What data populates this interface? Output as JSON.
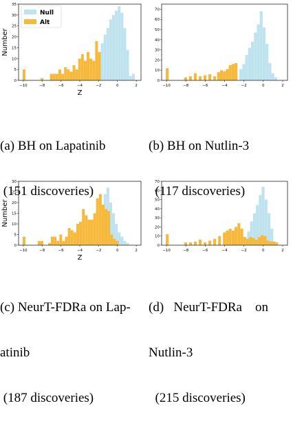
{
  "figure": {
    "captions": [
      {
        "lines": [
          "(a) BH on Lapatinib",
          " (151 discoveries)"
        ]
      },
      {
        "lines": [
          "(b) BH on Nutlin-3",
          "  (117 discoveries)"
        ]
      },
      {
        "lines": [
          "(c) NeurT-FDRa on Lap-",
          "atinib",
          " (187 discoveries)"
        ]
      },
      {
        "lines": [
          "(d)   NeurT-FDRa    on",
          "Nutlin-3",
          "  (215 discoveries)"
        ]
      }
    ]
  },
  "colors": {
    "null": "#bfe3ee",
    "alt": "#f6b93b"
  },
  "chart_data": [
    {
      "type": "bar",
      "title": "",
      "xlabel": "Z",
      "ylabel": "Number",
      "xlim": [
        -10.5,
        2.5
      ],
      "ylim": [
        0,
        35
      ],
      "xticks": [
        -10,
        -8,
        -6,
        -4,
        -2,
        0,
        2
      ],
      "yticks": [
        0,
        5,
        10,
        15,
        20,
        25,
        30,
        35
      ],
      "legend": {
        "position": "top-left",
        "entries": [
          "Null",
          "Alt"
        ]
      },
      "bin_width": 0.33,
      "series": [
        {
          "name": "Null",
          "x": [
            -2.2,
            -1.9,
            -1.6,
            -1.3,
            -1.0,
            -0.7,
            -0.4,
            -0.1,
            0.2,
            0.5,
            0.8,
            1.1,
            1.4,
            1.7
          ],
          "values": [
            4,
            11,
            17,
            21,
            24,
            28,
            30,
            32,
            34,
            31,
            24,
            14,
            2,
            3
          ]
        },
        {
          "name": "Alt",
          "x": [
            -9.9,
            -8.0,
            -7.0,
            -6.7,
            -6.4,
            -6.1,
            -5.8,
            -5.5,
            -5.2,
            -4.9,
            -4.6,
            -4.3,
            -4.0,
            -3.7,
            -3.4,
            -3.1,
            -2.8,
            -2.5,
            -2.2,
            -1.9
          ],
          "values": [
            5,
            1,
            3,
            3,
            3,
            5,
            3,
            6,
            5,
            4,
            7,
            5,
            10,
            12,
            9,
            13,
            10,
            9,
            18,
            13
          ]
        }
      ]
    },
    {
      "type": "bar",
      "title": "",
      "xlabel": "",
      "ylabel": "",
      "xlim": [
        -10.5,
        2.5
      ],
      "ylim": [
        0,
        75
      ],
      "xticks": [
        -10,
        -8,
        -6,
        -4,
        -2,
        0,
        2
      ],
      "yticks": [
        0,
        10,
        20,
        30,
        40,
        50,
        60,
        70
      ],
      "bin_width": 0.33,
      "series": [
        {
          "name": "Null",
          "x": [
            -2.3,
            -2.0,
            -1.7,
            -1.4,
            -1.1,
            -0.8,
            -0.5,
            -0.2,
            0.1,
            0.4,
            0.7,
            1.0,
            1.3
          ],
          "values": [
            11,
            16,
            25,
            32,
            38,
            47,
            55,
            68,
            52,
            36,
            17,
            7,
            3
          ]
        },
        {
          "name": "Alt",
          "x": [
            -9.9,
            -8.0,
            -7.5,
            -7.0,
            -6.5,
            -6.0,
            -5.5,
            -5.0,
            -4.6,
            -4.3,
            -4.0,
            -3.7,
            -3.4,
            -3.1,
            -2.8
          ],
          "values": [
            12,
            3,
            4,
            7,
            4,
            5,
            6,
            4,
            8,
            10,
            9,
            11,
            15,
            16,
            17
          ]
        }
      ]
    },
    {
      "type": "bar",
      "title": "",
      "xlabel": "Z",
      "ylabel": "Number",
      "xlim": [
        -10.5,
        2.5
      ],
      "ylim": [
        0,
        30
      ],
      "xticks": [
        -10,
        -8,
        -6,
        -4,
        -2,
        0,
        2
      ],
      "yticks": [
        0,
        5,
        10,
        15,
        20,
        25,
        30
      ],
      "bin_width": 0.33,
      "series": [
        {
          "name": "Null",
          "x": [
            -1.3,
            -1.0,
            -0.7,
            -0.4,
            -0.1,
            0.2,
            0.5,
            0.8,
            1.1
          ],
          "values": [
            24,
            27,
            20,
            15,
            10,
            6,
            4,
            2,
            1
          ]
        },
        {
          "name": "Alt",
          "x": [
            -9.9,
            -8.3,
            -8.0,
            -7.2,
            -6.9,
            -6.6,
            -6.3,
            -6.0,
            -5.7,
            -5.4,
            -5.1,
            -4.8,
            -4.5,
            -4.2,
            -3.9,
            -3.6,
            -3.3,
            -3.0,
            -2.7,
            -2.4,
            -2.1,
            -1.8,
            -1.5,
            -1.2,
            -0.9,
            -0.6,
            -0.3,
            0.0
          ],
          "values": [
            4,
            2,
            2,
            1,
            4,
            4,
            2,
            5,
            2,
            4,
            8,
            7,
            6,
            10,
            11,
            17,
            14,
            12,
            12,
            15,
            22,
            24,
            19,
            17,
            16,
            5,
            3,
            2
          ]
        }
      ]
    },
    {
      "type": "bar",
      "title": "",
      "xlabel": "",
      "ylabel": "",
      "xlim": [
        -10.5,
        2.5
      ],
      "ylim": [
        0,
        70
      ],
      "xticks": [
        -10,
        -8,
        -6,
        -4,
        -2,
        0,
        2
      ],
      "yticks": [
        0,
        10,
        20,
        30,
        40,
        50,
        60,
        70
      ],
      "bin_width": 0.33,
      "series": [
        {
          "name": "Null",
          "x": [
            -1.5,
            -1.2,
            -0.9,
            -0.6,
            -0.3,
            0.0,
            0.3,
            0.6,
            0.9,
            1.2
          ],
          "values": [
            15,
            26,
            35,
            44,
            55,
            64,
            50,
            35,
            18,
            4
          ]
        },
        {
          "name": "Alt",
          "x": [
            -9.9,
            -8.0,
            -7.5,
            -7.0,
            -6.5,
            -6.0,
            -5.5,
            -5.0,
            -4.5,
            -4.0,
            -3.7,
            -3.4,
            -3.1,
            -2.8,
            -2.5,
            -2.2,
            -1.9,
            -1.6,
            -1.3,
            -1.0,
            -0.7,
            -0.4,
            -0.1,
            0.2,
            0.5,
            0.8,
            1.1,
            1.4
          ],
          "values": [
            12,
            3,
            3,
            4,
            6,
            3,
            5,
            7,
            10,
            14,
            16,
            18,
            16,
            20,
            24,
            18,
            9,
            7,
            9,
            8,
            6,
            9,
            11,
            10,
            5,
            4,
            4,
            3
          ]
        }
      ]
    }
  ]
}
